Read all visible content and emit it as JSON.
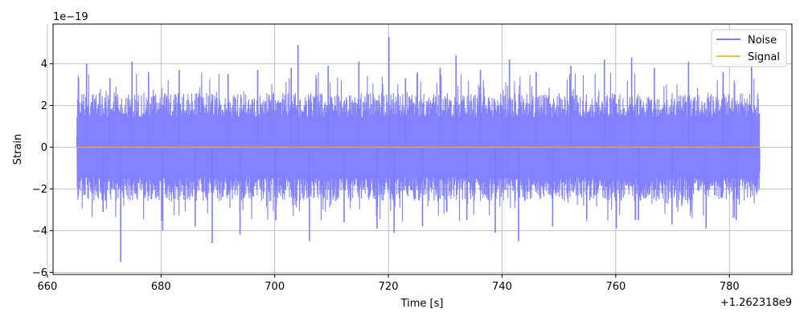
{
  "chart_data": {
    "type": "line",
    "title": "",
    "xlabel": "Time [s]",
    "ylabel": "Strain",
    "x_offset_label": "+1.262318e9",
    "y_scale_label": "1e−19",
    "xlim": [
      661,
      791
    ],
    "ylim": [
      -6.1,
      5.9
    ],
    "x_ticks": [
      660,
      680,
      700,
      720,
      740,
      760,
      780
    ],
    "x_tick_labels": [
      "660",
      "680",
      "700",
      "720",
      "740",
      "760",
      "780"
    ],
    "y_ticks": [
      -6,
      -4,
      -2,
      0,
      2,
      4
    ],
    "y_tick_labels": [
      "−6",
      "−4",
      "−2",
      "0",
      "2",
      "4"
    ],
    "grid": true,
    "legend_position": "top-right",
    "series": [
      {
        "name": "Noise",
        "color": "#7b7bff",
        "x": [
          665.2,
          666.9,
          669.8,
          671.0,
          672.9,
          674.9,
          677.8,
          680.3,
          683.2,
          686.0,
          689.0,
          691.8,
          693.9,
          697.0,
          700.2,
          702.9,
          704.1,
          706.1,
          709.4,
          712.2,
          714.8,
          718.0,
          720.1,
          721.0,
          723.0,
          726.0,
          729.1,
          731.9,
          733.8,
          736.2,
          738.8,
          741.3,
          742.9,
          746.0,
          748.9,
          752.1,
          754.9,
          758.0,
          760.1,
          762.8,
          764.0,
          766.8,
          769.9,
          772.8,
          775.9,
          778.9,
          781.2,
          783.9,
          785.3
        ],
        "values": [
          0.5,
          4.0,
          -3.1,
          3.3,
          -5.5,
          4.1,
          3.6,
          -4.0,
          3.7,
          -3.8,
          -4.6,
          3.5,
          -4.2,
          3.7,
          -3.5,
          3.8,
          4.9,
          -4.5,
          3.9,
          -3.6,
          4.1,
          -3.9,
          5.3,
          -4.1,
          3.3,
          -3.8,
          3.8,
          4.4,
          -3.5,
          3.7,
          -4.1,
          4.2,
          -4.5,
          3.6,
          -3.8,
          3.9,
          -3.4,
          4.2,
          -3.9,
          4.3,
          -3.5,
          3.8,
          -3.7,
          4.1,
          -3.9,
          3.6,
          -3.5,
          3.9,
          -1.2
        ],
        "band": [
          2.6,
          -2.6
        ]
      },
      {
        "name": "Signal",
        "color": "#ffa500",
        "x": [
          665.2,
          785.3
        ],
        "values": [
          0.0,
          0.0
        ]
      }
    ]
  }
}
